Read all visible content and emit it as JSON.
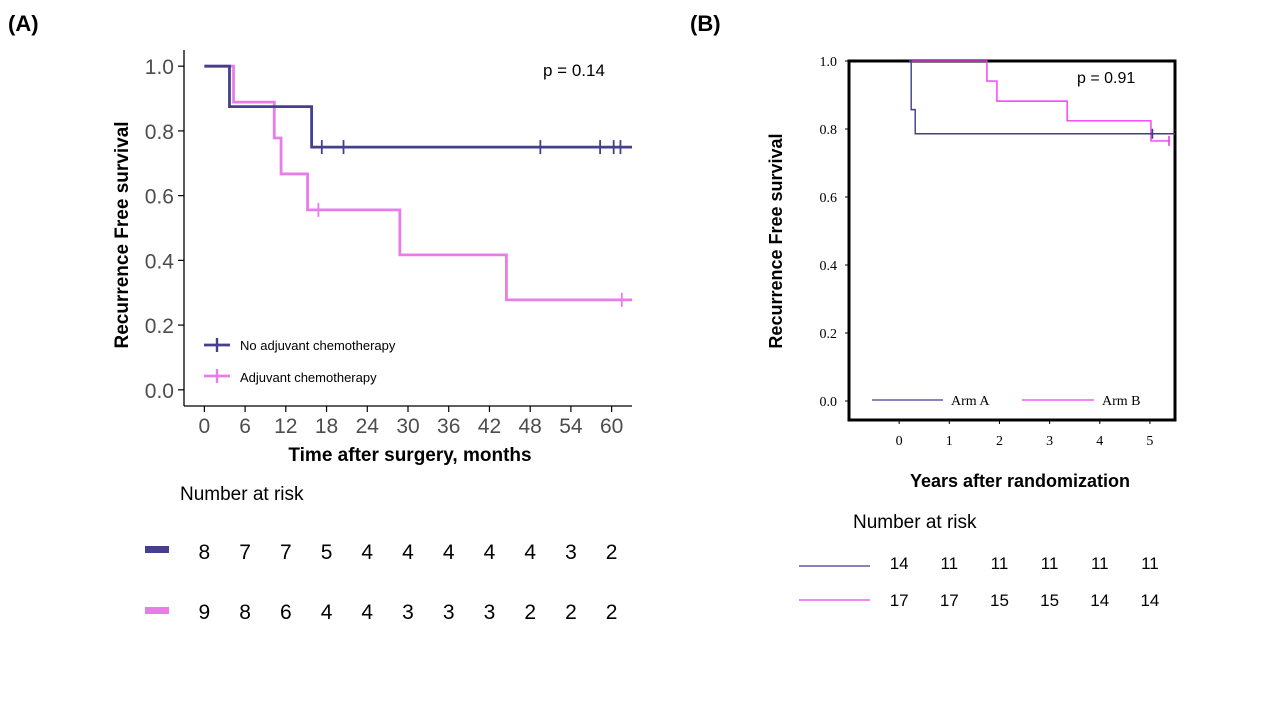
{
  "chart_data": [
    {
      "type": "line",
      "panel_label": "(A)",
      "xlabel": "Time after surgery, months",
      "ylabel": "Recurrence Free survival",
      "xlim": [
        -3,
        63
      ],
      "ylim": [
        -0.05,
        1.05
      ],
      "x_ticks": [
        0,
        6,
        12,
        18,
        24,
        30,
        36,
        42,
        48,
        54,
        60
      ],
      "y_ticks": [
        0.0,
        0.2,
        0.4,
        0.6,
        0.8,
        1.0
      ],
      "y_tick_labels": [
        "0.0",
        "0.2",
        "0.4",
        "0.6",
        "0.8",
        "1.0"
      ],
      "annotation": "p = 0.14",
      "legend_position": "bottom-left",
      "series": [
        {
          "name": "No adjuvant chemotherapy",
          "color": "#453f8c",
          "steps": [
            [
              0,
              1.0
            ],
            [
              3.7,
              0.875
            ],
            [
              15.8,
              0.75
            ],
            [
              63,
              0.75
            ]
          ],
          "censored": [
            [
              17.3,
              0.75
            ],
            [
              20.5,
              0.75
            ],
            [
              49.5,
              0.75
            ],
            [
              58.3,
              0.75
            ],
            [
              60.3,
              0.75
            ],
            [
              61.3,
              0.75
            ]
          ]
        },
        {
          "name": "Adjuvant chemotherapy",
          "color": "#e87de9",
          "steps": [
            [
              0,
              1.0
            ],
            [
              4.3,
              0.889
            ],
            [
              10.3,
              0.778
            ],
            [
              11.3,
              0.667
            ],
            [
              15.2,
              0.556
            ],
            [
              28.8,
              0.417
            ],
            [
              44.5,
              0.278
            ],
            [
              63,
              0.278
            ]
          ],
          "censored": [
            [
              16.8,
              0.556
            ],
            [
              61.5,
              0.278
            ]
          ]
        }
      ],
      "risk_table": {
        "title": "Number at risk",
        "rows": [
          {
            "color": "#453f8c",
            "values": [
              "8",
              "7",
              "7",
              "5",
              "4",
              "4",
              "4",
              "4",
              "4",
              "3",
              "2"
            ]
          },
          {
            "color": "#e87de9",
            "values": [
              "9",
              "8",
              "6",
              "4",
              "4",
              "3",
              "3",
              "3",
              "2",
              "2",
              "2"
            ]
          }
        ]
      }
    },
    {
      "type": "line",
      "panel_label": "(B)",
      "xlabel": "Years after randomization",
      "ylabel": "Recurrence Free survival",
      "xlim": [
        -1,
        5.5
      ],
      "ylim": [
        -0.05,
        1.0
      ],
      "x_ticks": [
        0,
        1,
        2,
        3,
        4,
        5
      ],
      "y_ticks": [
        0.0,
        0.2,
        0.4,
        0.6,
        0.8,
        1.0
      ],
      "y_tick_labels": [
        "0.0",
        "0.2",
        "0.4",
        "0.6",
        "0.8",
        "1.0"
      ],
      "annotation": "p = 0.91",
      "legend_position": "bottom",
      "series": [
        {
          "name": "Arm A",
          "color": "#3f3c8c",
          "steps": [
            [
              0.2,
              1.0
            ],
            [
              0.2,
              1.0
            ],
            [
              0.24,
              0.857
            ],
            [
              0.32,
              0.786
            ],
            [
              5.5,
              0.786
            ]
          ],
          "censored": [
            [
              5.05,
              0.786
            ]
          ]
        },
        {
          "name": "Arm B",
          "color": "#f03cf0",
          "steps": [
            [
              0.2,
              1.0
            ],
            [
              1.75,
              0.941
            ],
            [
              1.95,
              0.882
            ],
            [
              3.35,
              0.824
            ],
            [
              5.02,
              0.765
            ],
            [
              5.4,
              0.765
            ]
          ],
          "censored": [
            [
              5.38,
              0.765
            ]
          ]
        }
      ],
      "risk_table": {
        "title": "Number at risk",
        "rows": [
          {
            "color": "#3f3c8c",
            "values": [
              "14",
              "11",
              "11",
              "11",
              "11",
              "11"
            ]
          },
          {
            "color": "#f03cf0",
            "values": [
              "17",
              "17",
              "15",
              "15",
              "14",
              "14"
            ]
          }
        ]
      }
    }
  ]
}
